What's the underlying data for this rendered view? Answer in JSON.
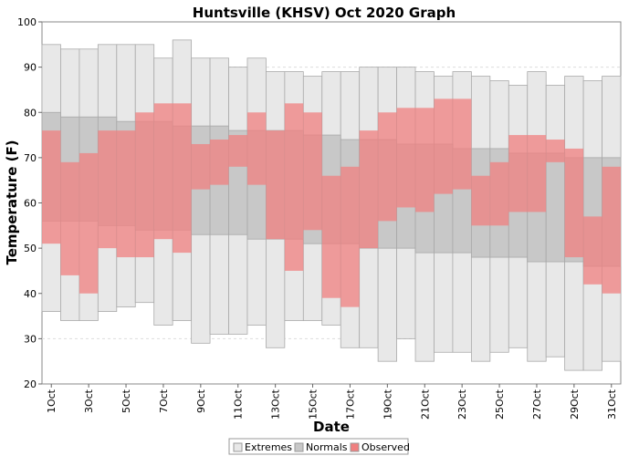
{
  "chart_data": {
    "type": "bar",
    "title": "Huntsville (KHSV) Oct 2020 Graph",
    "xlabel": "Date",
    "ylabel": "Temperature (F)",
    "ylim": [
      20,
      100
    ],
    "yticks": [
      20,
      30,
      40,
      50,
      60,
      70,
      80,
      90,
      100
    ],
    "grid": true,
    "legend_position": "bottom-center",
    "categories": [
      "1Oct",
      "2Oct",
      "3Oct",
      "4Oct",
      "5Oct",
      "6Oct",
      "7Oct",
      "8Oct",
      "9Oct",
      "10Oct",
      "11Oct",
      "12Oct",
      "13Oct",
      "14Oct",
      "15Oct",
      "16Oct",
      "17Oct",
      "18Oct",
      "19Oct",
      "20Oct",
      "21Oct",
      "22Oct",
      "23Oct",
      "24Oct",
      "25Oct",
      "26Oct",
      "27Oct",
      "28Oct",
      "29Oct",
      "30Oct",
      "31Oct"
    ],
    "xtick_labels": [
      "1Oct",
      "3Oct",
      "5Oct",
      "7Oct",
      "9Oct",
      "11Oct",
      "13Oct",
      "15Oct",
      "17Oct",
      "19Oct",
      "21Oct",
      "23Oct",
      "25Oct",
      "27Oct",
      "29Oct",
      "31Oct"
    ],
    "series": [
      {
        "name": "Extremes",
        "color": "#e8e8e8",
        "high": [
          95,
          94,
          94,
          95,
          95,
          95,
          92,
          96,
          92,
          92,
          90,
          92,
          89,
          89,
          88,
          89,
          89,
          90,
          90,
          90,
          89,
          88,
          89,
          88,
          87,
          86,
          89,
          86,
          88,
          87,
          88
        ],
        "low": [
          36,
          34,
          34,
          36,
          37,
          38,
          33,
          34,
          29,
          31,
          31,
          33,
          28,
          34,
          34,
          33,
          28,
          28,
          25,
          30,
          25,
          27,
          27,
          25,
          27,
          28,
          25,
          26,
          23,
          23,
          25
        ]
      },
      {
        "name": "Normals",
        "color": "#c8c8c8",
        "high": [
          80,
          79,
          79,
          79,
          78,
          78,
          78,
          77,
          77,
          77,
          76,
          76,
          76,
          76,
          75,
          75,
          74,
          74,
          74,
          73,
          73,
          73,
          72,
          72,
          72,
          71,
          71,
          71,
          70,
          70,
          70
        ],
        "low": [
          56,
          56,
          56,
          55,
          55,
          54,
          54,
          54,
          53,
          53,
          53,
          52,
          52,
          52,
          51,
          51,
          51,
          50,
          50,
          50,
          49,
          49,
          49,
          48,
          48,
          48,
          47,
          47,
          47,
          46,
          46
        ]
      },
      {
        "name": "Observed",
        "color": "#f08080",
        "high": [
          76,
          69,
          71,
          76,
          76,
          80,
          82,
          82,
          73,
          74,
          75,
          80,
          76,
          82,
          80,
          66,
          68,
          76,
          80,
          81,
          81,
          83,
          83,
          66,
          69,
          75,
          75,
          74,
          72,
          57,
          68
        ],
        "low": [
          51,
          44,
          40,
          50,
          48,
          48,
          52,
          49,
          63,
          64,
          68,
          64,
          52,
          45,
          54,
          39,
          37,
          50,
          56,
          59,
          58,
          62,
          63,
          55,
          55,
          58,
          58,
          69,
          48,
          42,
          40
        ]
      }
    ]
  },
  "colors": {
    "plot_background": "#ffffff",
    "grid": "#dddddd",
    "extremes_stroke": "#aaaaaa",
    "normals_stroke": "#a8a8a8",
    "observed_fill": "#e0626a"
  }
}
